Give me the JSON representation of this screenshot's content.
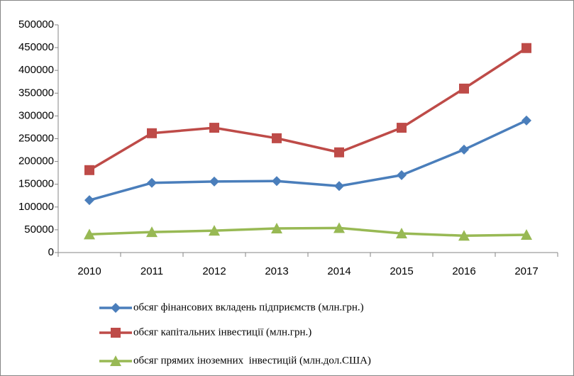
{
  "chart_data": {
    "type": "line",
    "categories": [
      "2010",
      "2011",
      "2012",
      "2013",
      "2014",
      "2015",
      "2016",
      "2017"
    ],
    "series": [
      {
        "name": "обсяг фінансових вкладень підприємств (млн.грн.)",
        "color": "#4a7ebb",
        "marker": "diamond",
        "values": [
          115000,
          153000,
          156000,
          157000,
          146000,
          170000,
          226000,
          290000
        ]
      },
      {
        "name": "обсяг капітальних інвестиції (млн.грн.)",
        "color": "#be4b48",
        "marker": "square",
        "values": [
          181000,
          262000,
          274000,
          251000,
          220000,
          274000,
          360000,
          449000
        ]
      },
      {
        "name": "обсяг прямих іноземних  інвестицій (млн.дол.США)",
        "color": "#98b954",
        "marker": "triangle",
        "values": [
          40000,
          45000,
          48000,
          53000,
          54000,
          42000,
          37000,
          39000
        ]
      }
    ],
    "ylim": [
      0,
      500000
    ],
    "yticks": [
      0,
      50000,
      100000,
      150000,
      200000,
      250000,
      300000,
      350000,
      400000,
      450000,
      500000
    ],
    "grid": false,
    "legend": "bottom"
  }
}
